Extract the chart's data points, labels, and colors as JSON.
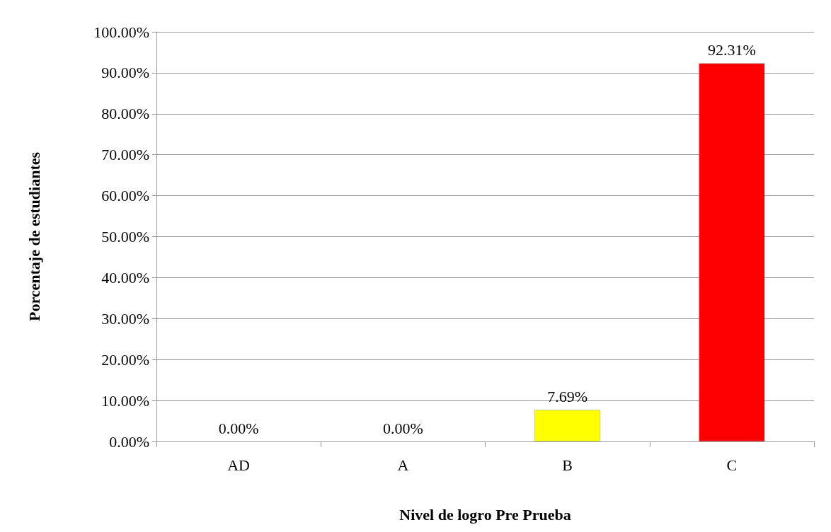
{
  "chart_data": {
    "type": "bar",
    "xlabel": "Nivel de logro Pre Prueba",
    "ylabel": "Porcentaje de estudiantes",
    "categories": [
      "AD",
      "A",
      "B",
      "C"
    ],
    "values": [
      0,
      0,
      7.69,
      92.31
    ],
    "colors": [
      "#00b050",
      "#0070c0",
      "#ffff00",
      "#ff0000"
    ],
    "value_labels": [
      "0.00%",
      "0.00%",
      "7.69%",
      "92.31%"
    ],
    "ylim": [
      0,
      100
    ],
    "yticks": [
      {
        "value": 0,
        "label": "0.00%"
      },
      {
        "value": 10,
        "label": "10.00%"
      },
      {
        "value": 20,
        "label": "20.00%"
      },
      {
        "value": 30,
        "label": "30.00%"
      },
      {
        "value": 40,
        "label": "40.00%"
      },
      {
        "value": 50,
        "label": "50.00%"
      },
      {
        "value": 60,
        "label": "60.00%"
      },
      {
        "value": 70,
        "label": "70.00%"
      },
      {
        "value": 80,
        "label": "80.00%"
      },
      {
        "value": 90,
        "label": "90.00%"
      },
      {
        "value": 100,
        "label": "100.00%"
      }
    ],
    "grid": "y"
  }
}
